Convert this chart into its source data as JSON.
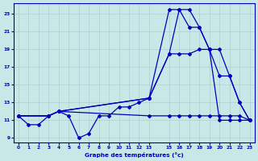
{
  "xlabel": "Graphe des températures (°c)",
  "bg_color": "#c8e8e8",
  "grid_color": "#a8d0d0",
  "line_color": "#0000bb",
  "xlim": [
    -0.5,
    23.5
  ],
  "ylim": [
    8.5,
    24.2
  ],
  "xticks": [
    0,
    1,
    2,
    3,
    4,
    5,
    6,
    7,
    8,
    9,
    10,
    11,
    12,
    13,
    15,
    16,
    17,
    18,
    19,
    20,
    21,
    22,
    23
  ],
  "yticks": [
    9,
    11,
    13,
    15,
    17,
    19,
    21,
    23
  ],
  "curve_hourly_x": [
    0,
    1,
    2,
    3,
    4,
    5,
    6,
    7,
    8,
    9,
    10,
    11,
    12,
    13,
    15,
    16,
    17,
    18,
    19,
    20,
    21,
    22,
    23
  ],
  "curve_hourly_y": [
    11.5,
    10.5,
    10.5,
    11.5,
    12.0,
    11.5,
    9.0,
    9.5,
    11.5,
    11.5,
    12.5,
    12.5,
    13.0,
    13.5,
    18.5,
    23.5,
    23.5,
    21.5,
    19.0,
    11.0,
    11.0,
    11.0,
    11.0
  ],
  "curve_max_x": [
    0,
    3,
    4,
    13,
    15,
    16,
    17,
    18,
    19,
    20,
    21,
    22,
    23
  ],
  "curve_max_y": [
    11.5,
    11.5,
    12.0,
    13.5,
    23.5,
    23.5,
    21.5,
    21.5,
    19.0,
    16.0,
    16.0,
    13.0,
    11.0
  ],
  "curve_diag_x": [
    0,
    3,
    4,
    13,
    15,
    16,
    17,
    18,
    19,
    20,
    21,
    22,
    23
  ],
  "curve_diag_y": [
    11.5,
    11.5,
    12.0,
    13.5,
    18.5,
    18.5,
    18.5,
    19.0,
    19.0,
    19.0,
    16.0,
    13.0,
    11.0
  ],
  "curve_flat_x": [
    0,
    3,
    4,
    13,
    15,
    16,
    17,
    18,
    19,
    20,
    21,
    22,
    23
  ],
  "curve_flat_y": [
    11.5,
    11.5,
    12.0,
    11.5,
    11.5,
    11.5,
    11.5,
    11.5,
    11.5,
    11.5,
    11.5,
    11.5,
    11.0
  ]
}
